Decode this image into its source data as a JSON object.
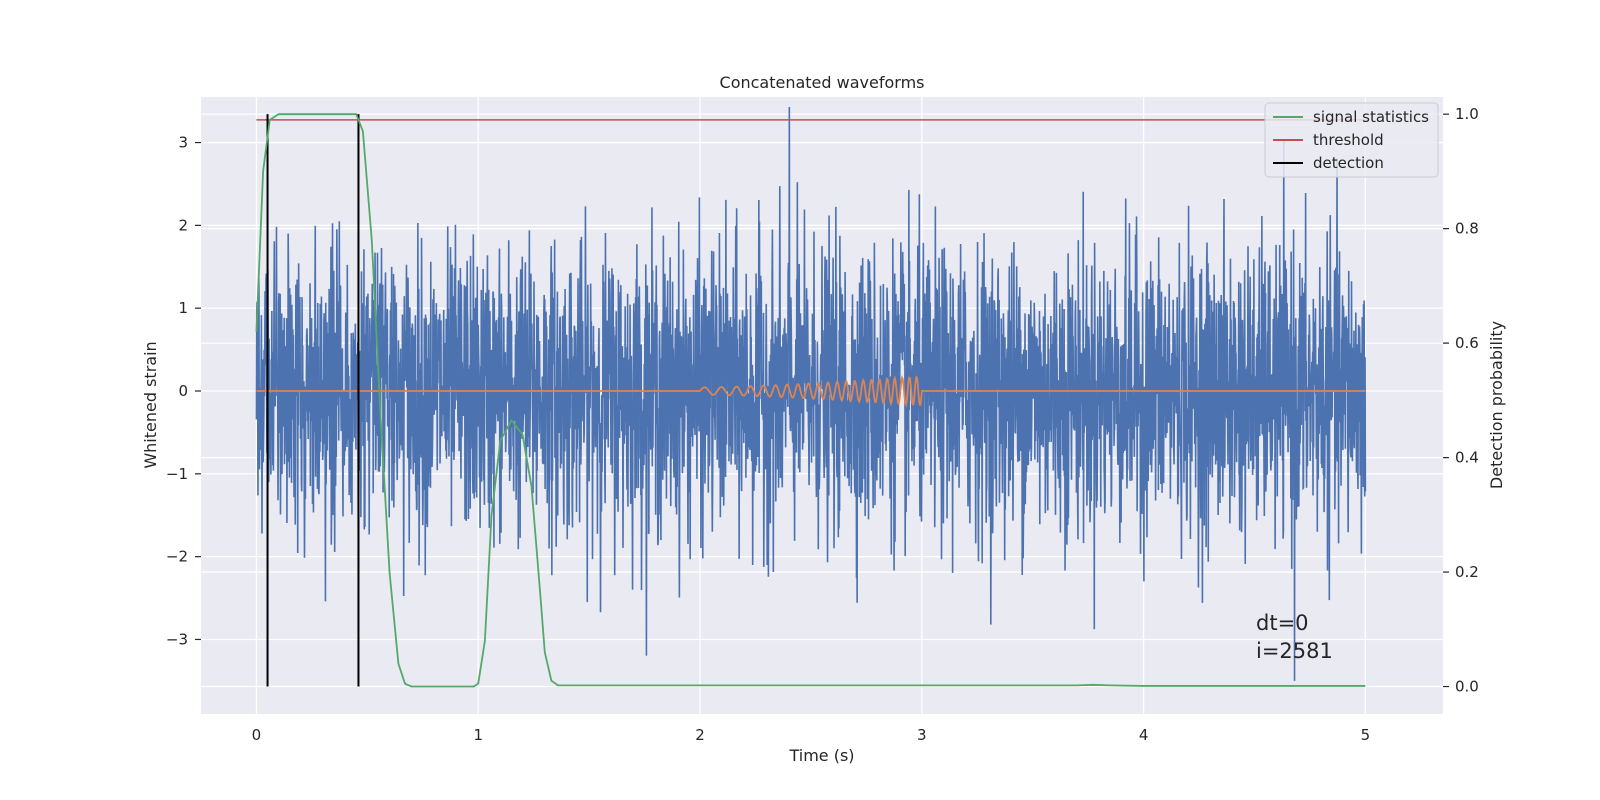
{
  "chart_data": {
    "type": "line",
    "title": "Concatenated waveforms",
    "xlabel": "Time (s)",
    "ylabel": "Whitened strain",
    "y2label": "Detection probability",
    "xlim": [
      -0.25,
      5.35
    ],
    "ylim": [
      -3.9,
      3.55
    ],
    "y2lim": [
      -0.048,
      1.03
    ],
    "xticks": [
      0,
      1,
      2,
      3,
      4,
      5
    ],
    "yticks": [
      -3,
      -2,
      -1,
      0,
      1,
      2,
      3
    ],
    "y2ticks": [
      0.0,
      0.2,
      0.4,
      0.6,
      0.8,
      1.0
    ],
    "grid": true,
    "legend_position": "top-right",
    "legend": [
      {
        "label": "signal statistics",
        "color": "#55a868"
      },
      {
        "label": "threshold",
        "color": "#c44e52"
      },
      {
        "label": "detection",
        "color": "#000000"
      }
    ],
    "series": [
      {
        "key": "noise",
        "color": "#4c72b0",
        "x_range": [
          0,
          5
        ],
        "amplitude_std": 0.85,
        "peak_values": [
          3.43,
          -3.5
        ]
      },
      {
        "key": "chirp",
        "color": "#dd8452",
        "x_range": [
          2.0,
          3.0
        ],
        "amplitude_max": 0.18
      },
      {
        "name": "signal statistics",
        "color": "#55a868",
        "x": [
          0,
          0.03,
          0.06,
          0.1,
          0.2,
          0.3,
          0.4,
          0.45,
          0.48,
          0.52,
          0.56,
          0.6,
          0.64,
          0.67,
          0.7,
          0.8,
          0.9,
          0.98,
          1.0,
          1.03,
          1.06,
          1.1,
          1.15,
          1.2,
          1.24,
          1.28,
          1.3,
          1.33,
          1.36,
          1.5,
          2.0,
          2.5,
          3.0,
          3.5,
          3.7,
          3.77,
          3.85,
          4.0,
          4.5,
          5.0
        ],
        "y": [
          0.62,
          0.9,
          0.99,
          1.0,
          1.0,
          1.0,
          1.0,
          1.0,
          0.97,
          0.78,
          0.47,
          0.2,
          0.04,
          0.005,
          0.0,
          0.0,
          0.0,
          0.0,
          0.005,
          0.08,
          0.3,
          0.43,
          0.465,
          0.44,
          0.35,
          0.16,
          0.06,
          0.01,
          0.002,
          0.002,
          0.002,
          0.002,
          0.002,
          0.002,
          0.002,
          0.003,
          0.002,
          0.001,
          0.001,
          0.001
        ]
      },
      {
        "name": "threshold",
        "color": "#c44e52",
        "x": [
          0,
          5
        ],
        "y": [
          0.99,
          0.99
        ]
      },
      {
        "name": "detection",
        "color": "#000000",
        "x": [
          0.05,
          0.46
        ],
        "y_range": [
          0.0,
          1.0
        ]
      }
    ],
    "annotations": [
      "dt=0",
      "i=2581"
    ]
  }
}
